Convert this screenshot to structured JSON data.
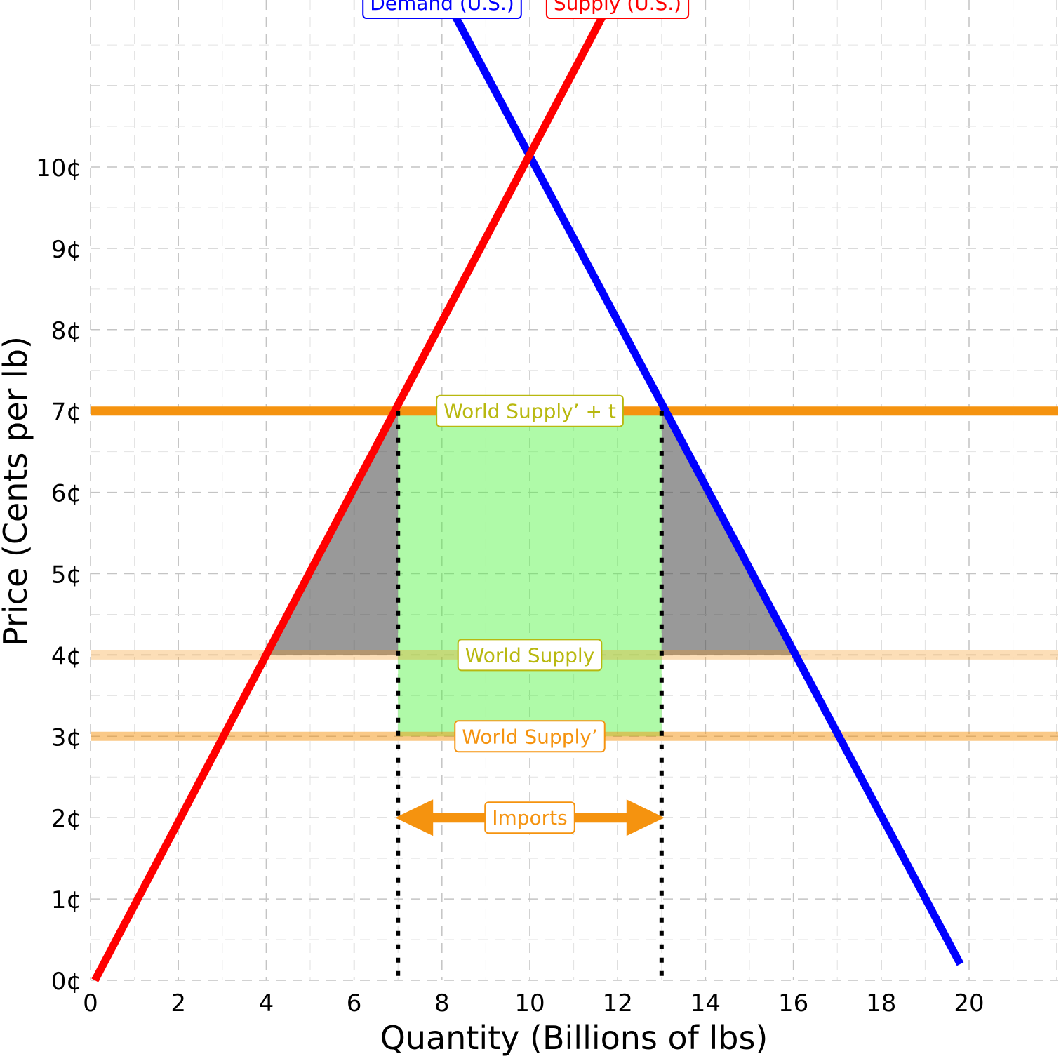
{
  "chart_data": {
    "type": "line",
    "xlabel": "Quantity (Billions of lbs)",
    "ylabel": "Price (Cents per lb)",
    "xlim": [
      0,
      22
    ],
    "ylim": [
      0,
      11.8
    ],
    "x_ticks": [
      0,
      2,
      4,
      6,
      8,
      10,
      12,
      14,
      16,
      18,
      20
    ],
    "x_tick_labels": [
      "0",
      "2",
      "4",
      "6",
      "8",
      "10",
      "12",
      "14",
      "16",
      "18",
      "20"
    ],
    "y_ticks": [
      0,
      1,
      2,
      3,
      4,
      5,
      6,
      7,
      8,
      9,
      10
    ],
    "y_tick_labels": [
      "0¢",
      "1¢",
      "2¢",
      "3¢",
      "4¢",
      "5¢",
      "6¢",
      "7¢",
      "8¢",
      "9¢",
      "10¢"
    ],
    "grid": "dashed",
    "series": [
      {
        "name": "Demand (U.S.)",
        "color": "#0000ff",
        "x": [
          8.16,
          19.8
        ],
        "y": [
          12.0,
          0.2
        ]
      },
      {
        "name": "Supply (U.S.)",
        "color": "#ff0000",
        "x": [
          0.1,
          11.8
        ],
        "y": [
          0.0,
          12.0
        ]
      }
    ],
    "hlines": [
      {
        "name": "World Supply’ + t",
        "y": 7,
        "color": "#f5930f",
        "opacity": 1.0,
        "label_x": 10
      },
      {
        "name": "World Supply",
        "y": 4,
        "color": "#f5930f",
        "opacity": 0.3,
        "label_x": 10
      },
      {
        "name": "World Supply’",
        "y": 3,
        "color": "#f5930f",
        "opacity": 0.5,
        "label_x": 10
      }
    ],
    "vlines": [
      {
        "x": 7,
        "y_top": 7,
        "style": "dotted",
        "color": "#000000"
      },
      {
        "x": 13,
        "y_top": 7,
        "style": "dotted",
        "color": "#000000"
      }
    ],
    "shaded_regions": [
      {
        "kind": "deadweight-loss",
        "color": "#555555",
        "opacity": 0.6,
        "points": [
          [
            4,
            4
          ],
          [
            7,
            7
          ],
          [
            7,
            4
          ]
        ]
      },
      {
        "kind": "deadweight-loss",
        "color": "#555555",
        "opacity": 0.6,
        "points": [
          [
            13,
            7
          ],
          [
            16,
            4
          ],
          [
            13,
            4
          ]
        ]
      },
      {
        "kind": "tariff-revenue",
        "color": "#4df53e",
        "opacity": 0.45,
        "points": [
          [
            7,
            3
          ],
          [
            7,
            7
          ],
          [
            13,
            7
          ],
          [
            13,
            3
          ]
        ]
      }
    ],
    "annotations": [
      {
        "text": "Imports",
        "x_from": 7,
        "x_to": 13,
        "y": 2,
        "color": "#f5930f"
      }
    ],
    "label_colors": {
      "World Supply’ + t": "#b8b80f",
      "World Supply": "#b8b80f",
      "World Supply’": "#f5930f",
      "Imports": "#f5930f"
    }
  }
}
